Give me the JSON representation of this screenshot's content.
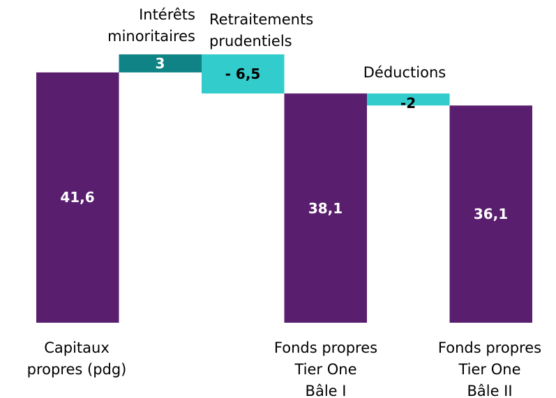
{
  "chart_data": {
    "type": "waterfall",
    "categories": [
      "Capitaux\npropres (pdg)",
      "Intérêts\nminoritaires",
      "Retraitements\nprudentiels",
      "Fonds propres\nTier One\nBâle I",
      "Déductions",
      "Fonds propres\nTier One\nBâle II"
    ],
    "values": [
      41.6,
      3,
      -6.5,
      38.1,
      -2,
      36.1
    ],
    "value_labels": [
      "41,6",
      "3",
      "- 6,5",
      "38,1",
      "-2",
      "36,1"
    ],
    "measures": [
      "total",
      "relative",
      "relative",
      "total",
      "relative",
      "total"
    ],
    "colors": [
      "#5a1e6e",
      "#0f8385",
      "#33cccc",
      "#5a1e6e",
      "#33cccc",
      "#5a1e6e"
    ]
  }
}
